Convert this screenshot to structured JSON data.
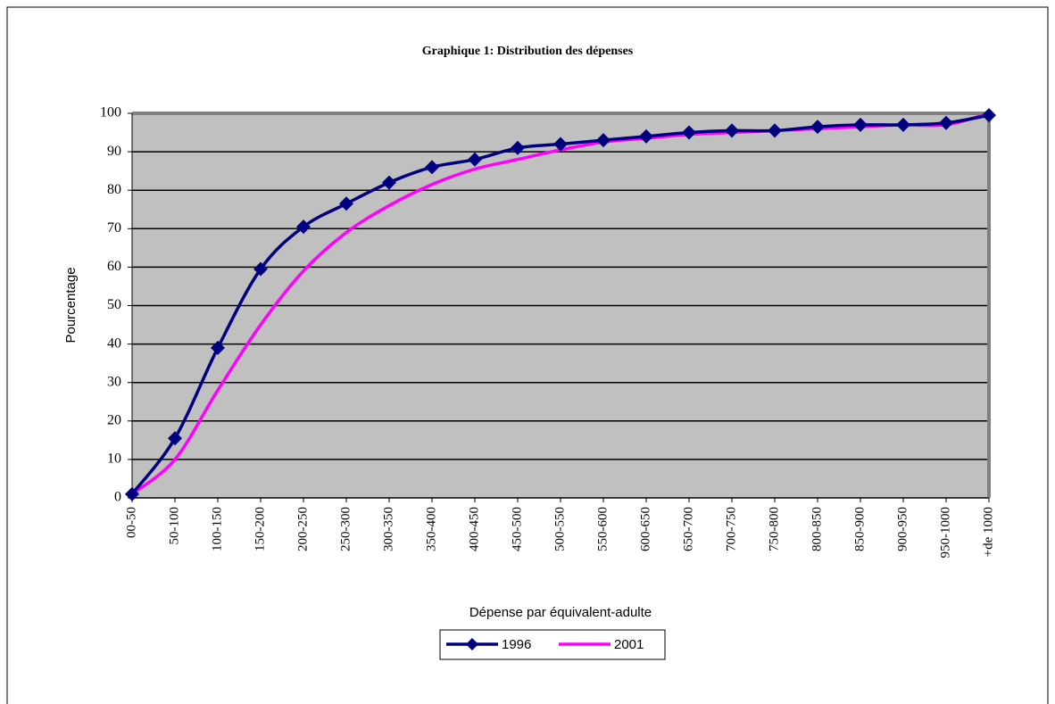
{
  "chart_data": {
    "type": "line",
    "title": "Graphique 1: Distribution des dépenses",
    "xlabel": "Dépense par équivalent-adulte",
    "ylabel": "Pourcentage",
    "categories": [
      "00-50",
      "50-100",
      "100-150",
      "150-200",
      "200-250",
      "250-300",
      "300-350",
      "350-400",
      "400-450",
      "450-500",
      "500-550",
      "550-600",
      "600-650",
      "650-700",
      "700-750",
      "750-800",
      "800-850",
      "850-900",
      "900-950",
      "950-1000",
      "+de 1000"
    ],
    "series": [
      {
        "name": "1996",
        "color": "#000080",
        "marker": "diamond",
        "values": [
          1,
          15.5,
          39,
          59.5,
          70.5,
          76.5,
          82,
          86,
          88,
          91,
          92,
          93,
          94,
          95,
          95.5,
          95.5,
          96.5,
          97,
          97,
          97.5,
          99.5
        ]
      },
      {
        "name": "2001",
        "color": "#ff00ff",
        "values": [
          1,
          10,
          28,
          45,
          59,
          69,
          76,
          81.5,
          85.5,
          88,
          90.5,
          92.5,
          93.5,
          94.5,
          95,
          95.5,
          96,
          96.5,
          97,
          97,
          100
        ]
      }
    ],
    "ylim": [
      0,
      100
    ],
    "yticks": [
      0,
      10,
      20,
      30,
      40,
      50,
      60,
      70,
      80,
      90,
      100
    ],
    "grid": true,
    "legend": "bottom"
  }
}
